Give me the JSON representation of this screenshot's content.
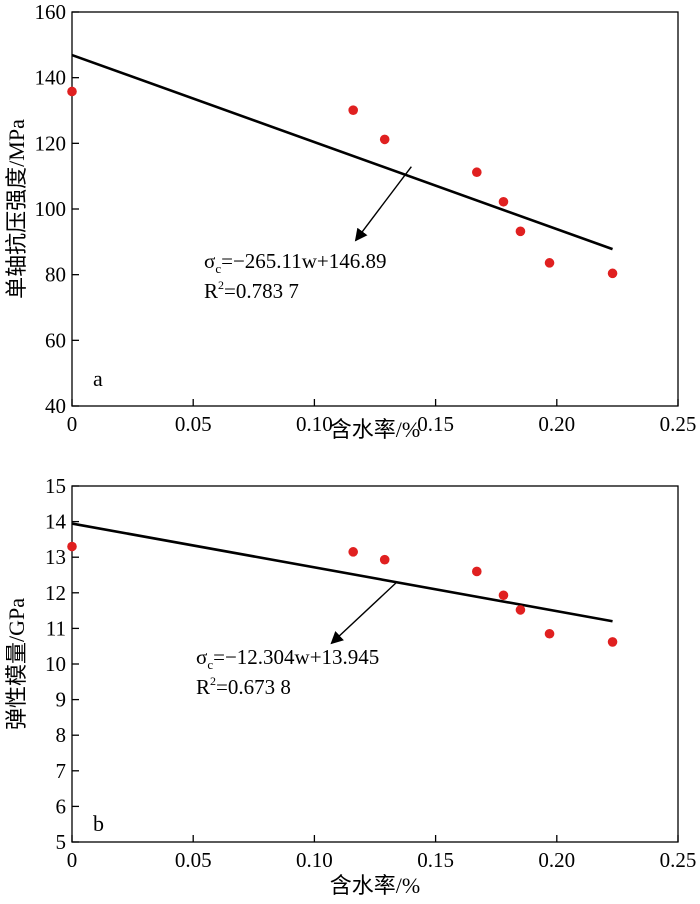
{
  "chart_data": [
    {
      "type": "scatter",
      "panel_label": "a",
      "xlabel": "含水率/%",
      "ylabel": "单轴抗压强度/MPa",
      "xlim": [
        0,
        0.25
      ],
      "ylim": [
        40,
        160
      ],
      "x_ticks": [
        0,
        0.05,
        0.1,
        0.15,
        0.2,
        0.25
      ],
      "x_tick_labels": [
        "0",
        "0.05",
        "0.10",
        "0.15",
        "0.20",
        "0.25"
      ],
      "y_ticks": [
        40,
        60,
        80,
        100,
        120,
        140,
        160
      ],
      "y_tick_labels": [
        "40",
        "60",
        "80",
        "100",
        "120",
        "140",
        "160"
      ],
      "grid": false,
      "series": [
        {
          "points": [
            {
              "x": 0.0,
              "y": 135.8
            },
            {
              "x": 0.116,
              "y": 130.1
            },
            {
              "x": 0.129,
              "y": 121.2
            },
            {
              "x": 0.167,
              "y": 111.2
            },
            {
              "x": 0.178,
              "y": 102.2
            },
            {
              "x": 0.185,
              "y": 93.2
            },
            {
              "x": 0.197,
              "y": 83.6
            },
            {
              "x": 0.223,
              "y": 80.4
            }
          ],
          "color": "#e02020"
        }
      ],
      "fit": {
        "slope": -265.11,
        "intercept": 146.89,
        "x_range": [
          0,
          0.223
        ],
        "color": "#000000"
      },
      "annotation": {
        "sym": "σ",
        "sub": "c",
        "expr": "=−265.11w+146.89",
        "r_label": "R",
        "r_sup": "2",
        "r_value": "=0.783 7",
        "arrow_from": {
          "x": 0.14,
          "y": 112.9
        },
        "arrow_to": {
          "x": 0.117,
          "y": 90.4
        }
      }
    },
    {
      "type": "scatter",
      "panel_label": "b",
      "xlabel": "含水率/%",
      "ylabel": "弹性模量/GPa",
      "xlim": [
        0,
        0.25
      ],
      "ylim": [
        5,
        15
      ],
      "x_ticks": [
        0,
        0.05,
        0.1,
        0.15,
        0.2,
        0.25
      ],
      "x_tick_labels": [
        "0",
        "0.05",
        "0.10",
        "0.15",
        "0.20",
        "0.25"
      ],
      "y_ticks": [
        5,
        6,
        7,
        8,
        9,
        10,
        11,
        12,
        13,
        14,
        15
      ],
      "y_tick_labels": [
        "5",
        "6",
        "7",
        "8",
        "9",
        "10",
        "11",
        "12",
        "13",
        "14",
        "15"
      ],
      "grid": false,
      "series": [
        {
          "points": [
            {
              "x": 0.0,
              "y": 13.3
            },
            {
              "x": 0.116,
              "y": 13.15
            },
            {
              "x": 0.129,
              "y": 12.93
            },
            {
              "x": 0.167,
              "y": 12.6
            },
            {
              "x": 0.178,
              "y": 11.93
            },
            {
              "x": 0.185,
              "y": 11.52
            },
            {
              "x": 0.197,
              "y": 10.85
            },
            {
              "x": 0.223,
              "y": 10.62
            }
          ],
          "color": "#e02020"
        }
      ],
      "fit": {
        "slope": -12.304,
        "intercept": 13.945,
        "x_range": [
          0,
          0.223
        ],
        "color": "#000000"
      },
      "annotation": {
        "sym": "σ",
        "sub": "c",
        "expr": "=−12.304w+13.945",
        "r_label": "R",
        "r_sup": "2",
        "r_value": "=0.673 8",
        "arrow_from": {
          "x": 0.134,
          "y": 12.3
        },
        "arrow_to": {
          "x": 0.107,
          "y": 10.58
        }
      }
    }
  ]
}
